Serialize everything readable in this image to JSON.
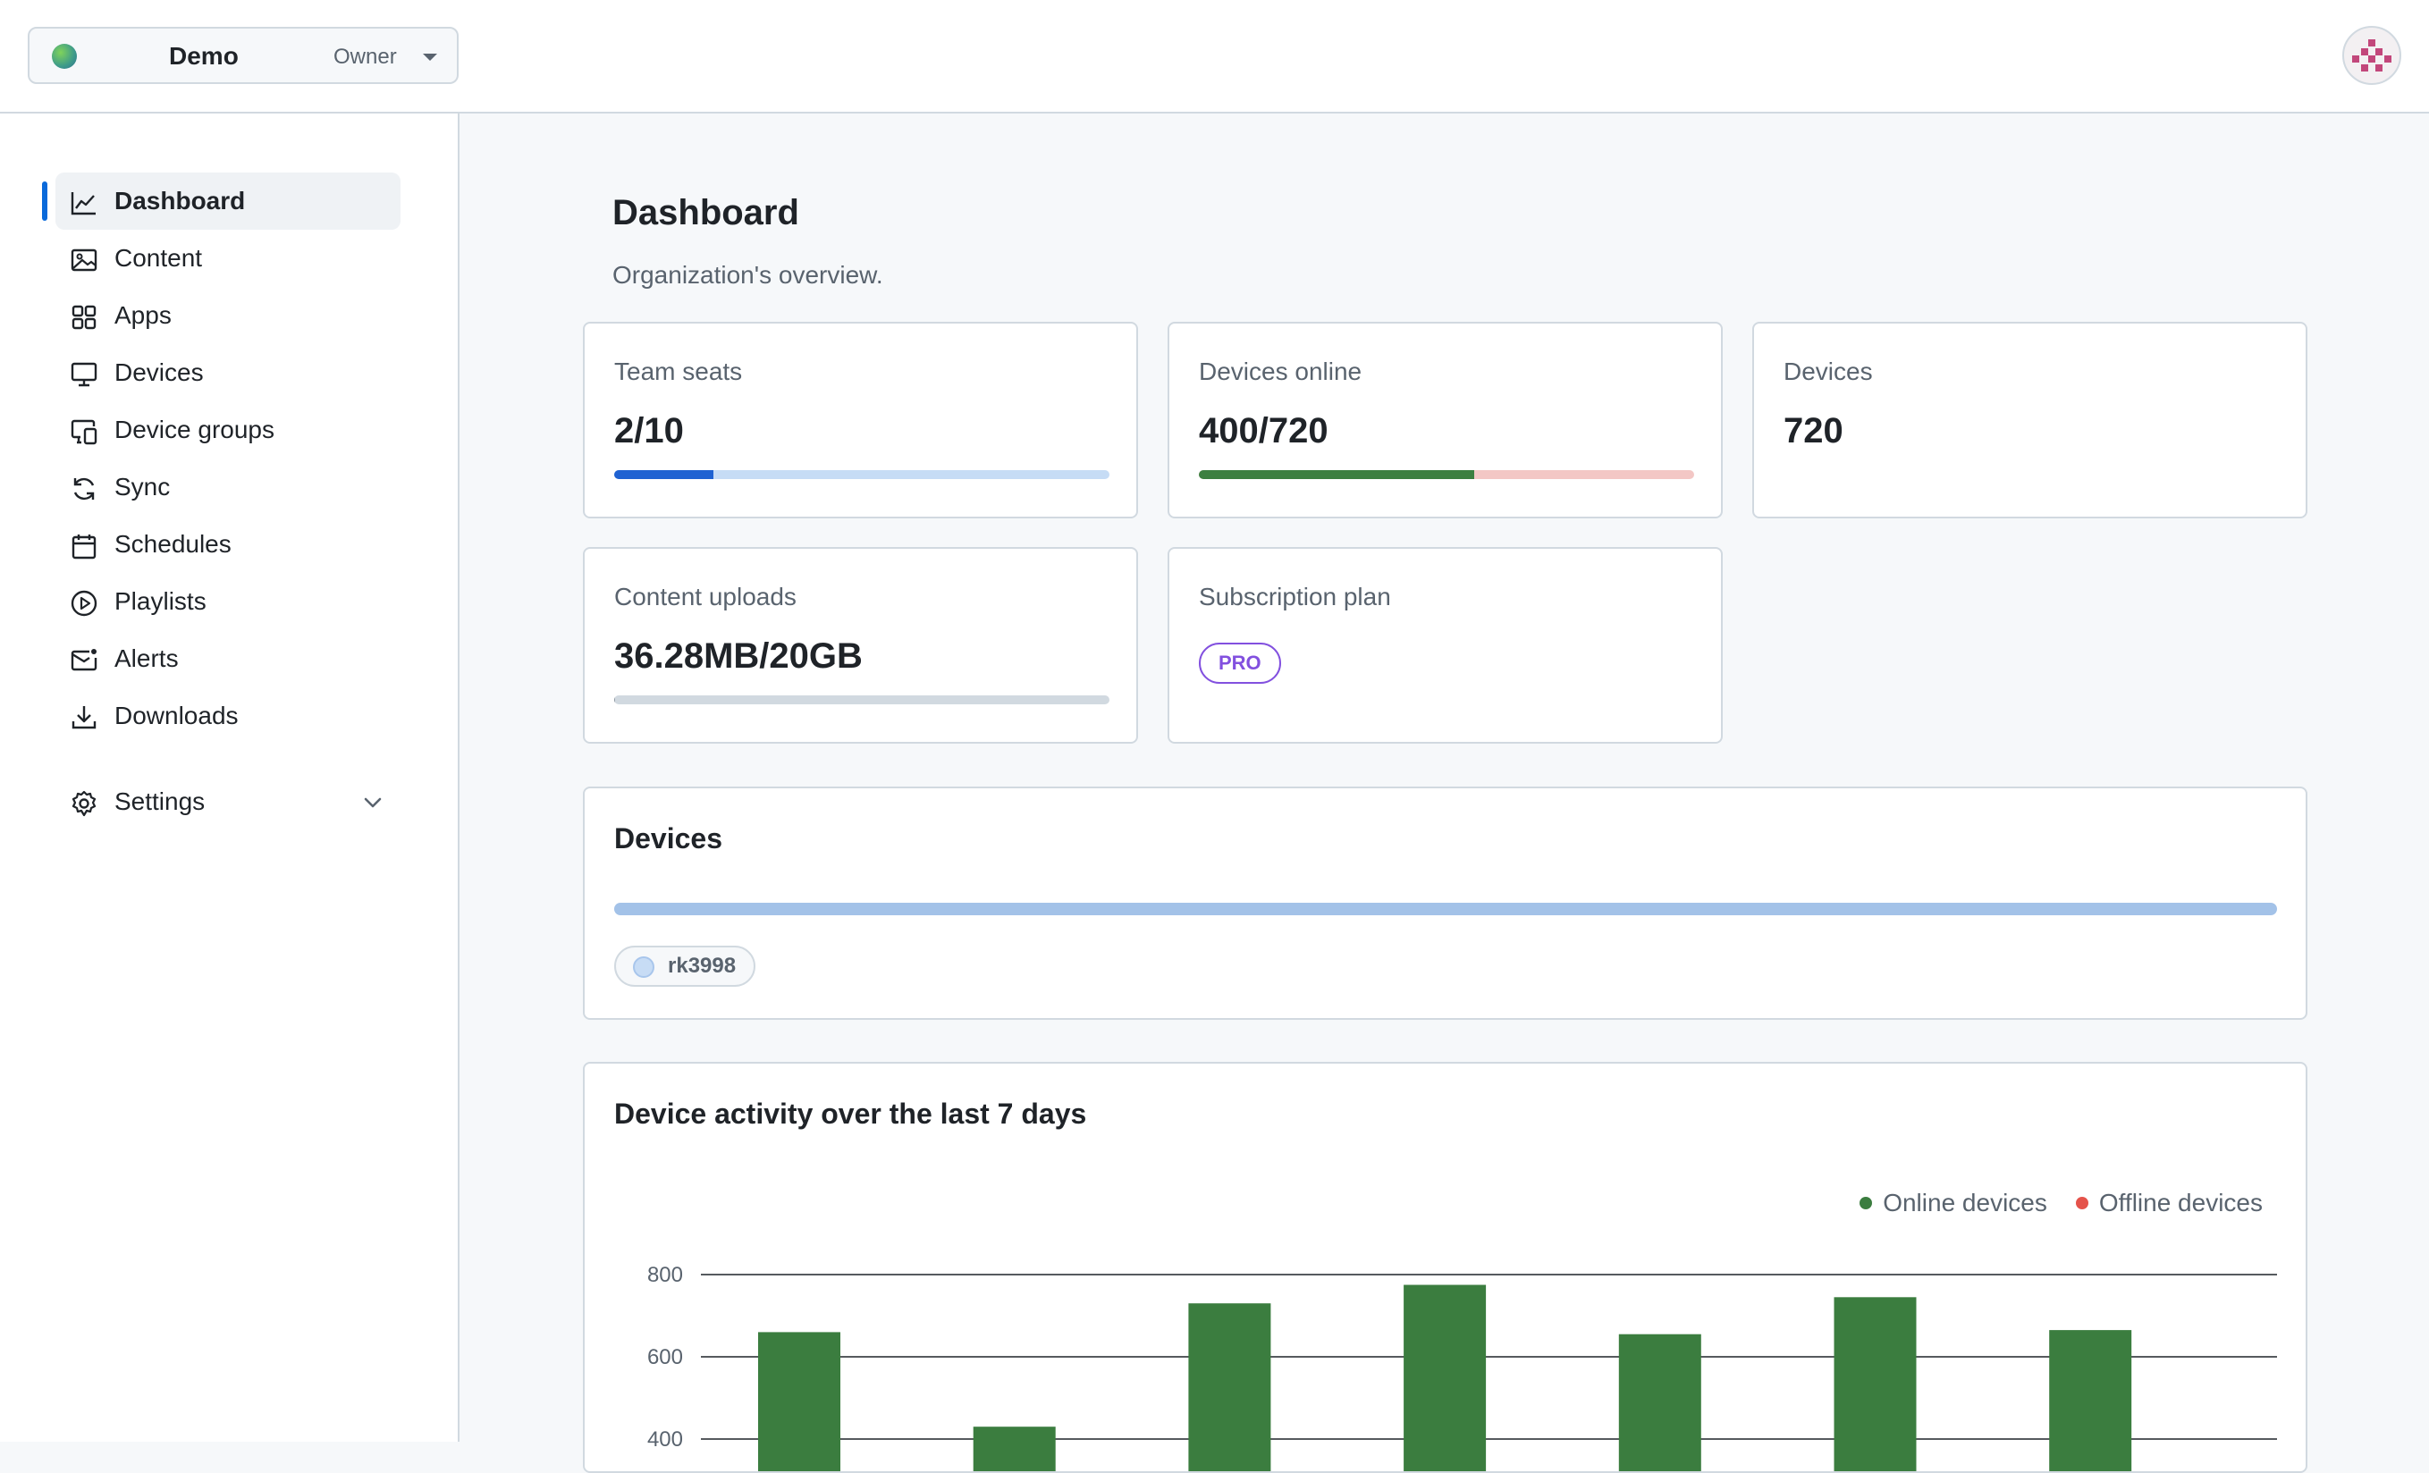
{
  "org": {
    "name": "Demo",
    "role": "Owner"
  },
  "sidebar": {
    "items": [
      {
        "label": "Dashboard",
        "icon": "chart-line-icon"
      },
      {
        "label": "Content",
        "icon": "image-icon"
      },
      {
        "label": "Apps",
        "icon": "apps-grid-icon"
      },
      {
        "label": "Devices",
        "icon": "monitor-icon"
      },
      {
        "label": "Device groups",
        "icon": "device-groups-icon"
      },
      {
        "label": "Sync",
        "icon": "sync-icon"
      },
      {
        "label": "Schedules",
        "icon": "calendar-icon"
      },
      {
        "label": "Playlists",
        "icon": "play-circle-icon"
      },
      {
        "label": "Alerts",
        "icon": "mail-alert-icon"
      },
      {
        "label": "Downloads",
        "icon": "download-icon"
      }
    ],
    "active_index": 0,
    "settings_label": "Settings"
  },
  "page": {
    "title": "Dashboard",
    "subtitle": "Organization's overview."
  },
  "stats": {
    "team_seats": {
      "label": "Team seats",
      "value": "2/10",
      "fraction": 0.2,
      "fill_color": "#1f62d2",
      "track_color": "#c6dcf5"
    },
    "devices_online": {
      "label": "Devices online",
      "value": "400/720",
      "fraction": 0.556,
      "fill_color": "#3c7f40",
      "track_color": "#f3c7c5"
    },
    "devices": {
      "label": "Devices",
      "value": "720"
    },
    "content_uploads": {
      "label": "Content uploads",
      "value": "36.28MB/20GB",
      "fraction": 0.002,
      "fill_color": "#8a949e",
      "track_color": "#d1d9e0"
    },
    "subscription": {
      "label": "Subscription plan",
      "plan": "PRO",
      "plan_color": "#8250df"
    }
  },
  "devices_section": {
    "title": "Devices",
    "chip_label": "rk3998"
  },
  "activity": {
    "title": "Device activity over the last 7 days"
  },
  "chart_data": {
    "type": "bar",
    "title": "Device activity over the last 7 days",
    "series": [
      {
        "name": "Online devices",
        "color": "#3b7d3f",
        "values": [
          660,
          430,
          730,
          775,
          655,
          745,
          665
        ]
      },
      {
        "name": "Offline devices",
        "color": "#e5534b",
        "values": []
      }
    ],
    "y_ticks": [
      800,
      600,
      400
    ],
    "ylim": [
      400,
      800
    ],
    "grid": true,
    "legend_position": "top-right"
  }
}
